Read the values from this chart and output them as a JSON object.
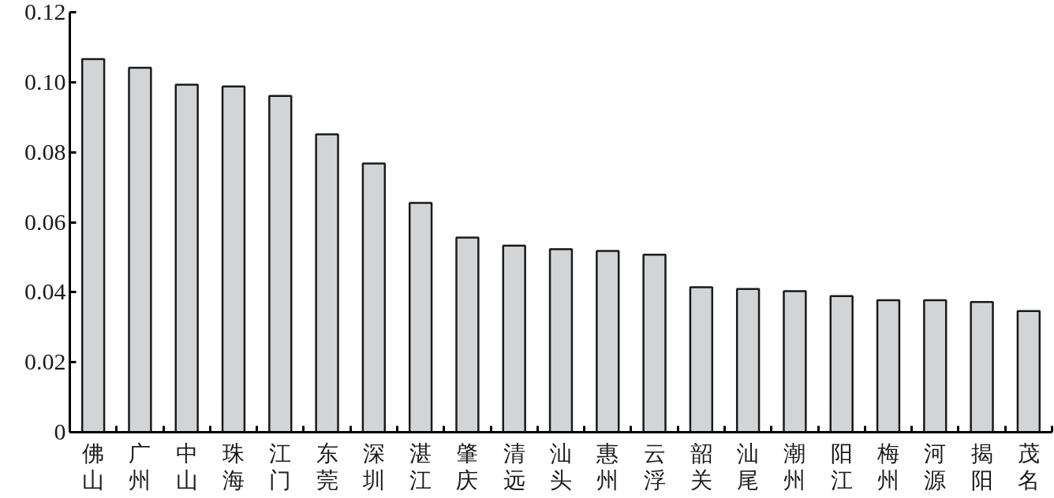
{
  "chart_data": {
    "type": "bar",
    "categories": [
      "佛山",
      "广州",
      "中山",
      "珠海",
      "江门",
      "东莞",
      "深圳",
      "湛江",
      "肇庆",
      "清远",
      "汕头",
      "惠州",
      "云浮",
      "韶关",
      "汕尾",
      "潮州",
      "阳江",
      "梅州",
      "河源",
      "揭阳",
      "茂名"
    ],
    "values": [
      0.1066,
      0.1041,
      0.0993,
      0.0988,
      0.0961,
      0.0851,
      0.0768,
      0.0655,
      0.0556,
      0.0533,
      0.0523,
      0.0518,
      0.0507,
      0.0414,
      0.0409,
      0.0403,
      0.0389,
      0.0377,
      0.0377,
      0.0372,
      0.0346
    ],
    "color": "#d3d4d6",
    "ylim": [
      0,
      0.12
    ],
    "yticks": [
      0,
      {
        "value": 0.02,
        "label": "0.02"
      },
      {
        "value": 0.04,
        "label": "0.04"
      },
      {
        "value": 0.06,
        "label": "0.06"
      },
      {
        "value": 0.08,
        "label": "0.08"
      },
      {
        "value": 0.1,
        "label": "0.10"
      },
      {
        "value": 0.12,
        "label": "0.12"
      }
    ]
  }
}
